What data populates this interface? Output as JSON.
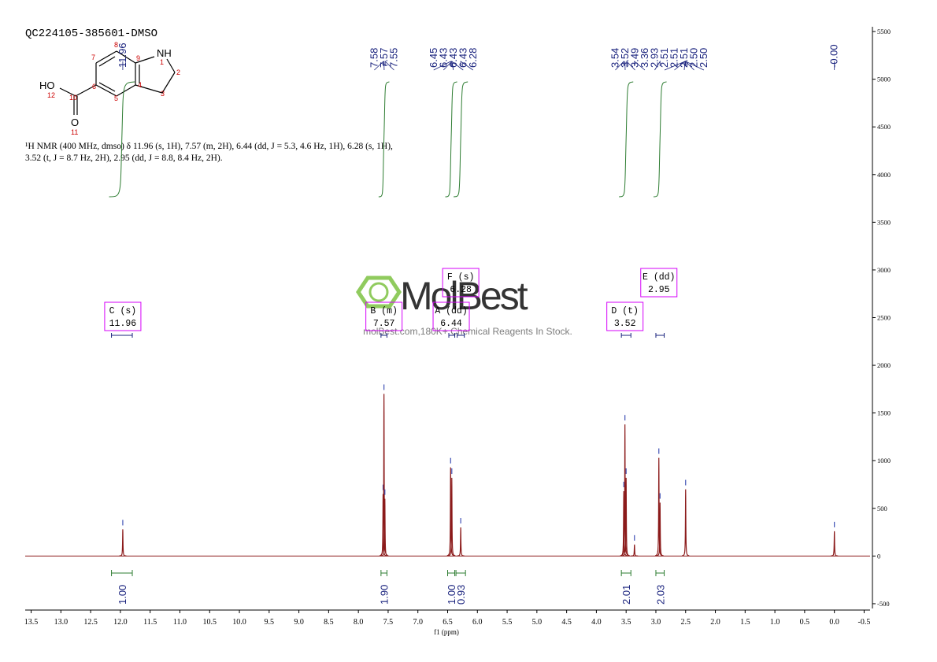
{
  "chart_data": {
    "type": "nmr",
    "title": "QC224105-385601-DMSO",
    "description": [
      "¹H NMR (400 MHz, dmso) δ 11.96 (s, 1H), 7.57 (m, 2H), 6.44 (dd, J = 5.3, 4.6 Hz, 1H), 6.28 (s, 1H),",
      "3.52 (t, J = 8.7 Hz, 2H), 2.95 (dd, J = 8.8, 8.4 Hz, 2H)."
    ],
    "x_label": "f1 (ppm)",
    "xlim": [
      13.6,
      -0.6
    ],
    "ylim": [
      -550,
      5550
    ],
    "xticks": [
      13.5,
      {
        "value": 13,
        "label": "13.0"
      },
      12.5,
      {
        "value": 12,
        "label": "12.0"
      },
      11.5,
      {
        "value": 11,
        "label": "11.0"
      },
      10.5,
      {
        "value": 10,
        "label": "10.0"
      },
      9.5,
      {
        "value": 9,
        "label": "9.0"
      },
      8.5,
      {
        "value": 8,
        "label": "8.0"
      },
      7.5,
      {
        "value": 7,
        "label": "7.0"
      },
      6.5,
      {
        "value": 6,
        "label": "6.0"
      },
      5.5,
      {
        "value": 5,
        "label": "5.0"
      },
      4.5,
      {
        "value": 4,
        "label": "4.0"
      },
      3.5,
      {
        "value": 3,
        "label": "3.0"
      },
      2.5,
      {
        "value": 2,
        "label": "2.0"
      },
      1.5,
      {
        "value": 1,
        "label": "1.0"
      },
      0.5,
      {
        "value": 0,
        "label": "0.0"
      },
      -0.5
    ],
    "yticks": [
      -500,
      0,
      500,
      1000,
      1500,
      2000,
      2500,
      3000,
      3500,
      4000,
      4500,
      5000,
      5500
    ],
    "color": "#8b1a1a",
    "peaks": {
      "x": [
        11.96,
        7.585,
        7.57,
        7.555,
        6.45,
        6.43,
        6.28,
        3.54,
        3.52,
        3.5,
        3.36,
        2.95,
        2.93,
        2.5,
        0
      ],
      "values": [
        280,
        650,
        1700,
        600,
        930,
        820,
        300,
        680,
        1380,
        820,
        120,
        1030,
        560,
        700,
        260
      ]
    },
    "peak_labels": [
      {
        "value": 11.96,
        "label": "11.96"
      },
      {
        "value": 7.58,
        "label": "7.58"
      },
      {
        "value": 7.57,
        "label": "7.57"
      },
      {
        "value": 7.55,
        "label": "7.55"
      },
      {
        "value": 6.45,
        "label": "6.45"
      },
      {
        "value": 6.43,
        "label": "6.43"
      },
      {
        "value": 6.43,
        "label": "6.43"
      },
      {
        "value": 6.43,
        "label": "6.43"
      },
      {
        "value": 6.28,
        "label": "6.28"
      },
      {
        "value": 3.54,
        "label": "3.54"
      },
      {
        "value": 3.52,
        "label": "3.52"
      },
      {
        "value": 3.49,
        "label": "3.49"
      },
      {
        "value": 3.36,
        "label": "3.36"
      },
      {
        "value": 2.93,
        "label": "2.93"
      },
      {
        "value": 2.51,
        "label": "2.51"
      },
      {
        "value": 2.51,
        "label": "2.51"
      },
      {
        "value": 2.51,
        "label": "2.51"
      },
      {
        "value": 2.5,
        "label": "2.50"
      },
      {
        "value": 2.5,
        "label": "2.50"
      },
      {
        "value": 0,
        "label": "-0.00"
      }
    ],
    "integrals": [
      {
        "range": [
          12.15,
          11.8
        ],
        "label": "1.00"
      },
      {
        "range": [
          7.62,
          7.52
        ],
        "label": "1.90"
      },
      {
        "range": [
          6.5,
          6.38
        ],
        "label": "1.00"
      },
      {
        "range": [
          6.36,
          6.2
        ],
        "label": "0.93"
      },
      {
        "range": [
          3.58,
          3.42
        ],
        "label": "2.01"
      },
      {
        "range": [
          3.0,
          2.86
        ],
        "label": "2.03"
      }
    ],
    "multiplets": [
      {
        "name": "C (s)",
        "value": 11.96,
        "range": [
          12.15,
          11.8
        ]
      },
      {
        "name": "B (m)",
        "value": 7.57,
        "range": [
          7.62,
          7.52
        ]
      },
      {
        "name": "A (dd)",
        "value": 6.44,
        "range": [
          6.48,
          6.38
        ]
      },
      {
        "name": "F (s)",
        "value": 6.28,
        "range": [
          6.34,
          6.22
        ]
      },
      {
        "name": "D (t)",
        "value": 3.52,
        "range": [
          3.58,
          3.42
        ]
      },
      {
        "name": "E (dd)",
        "value": 2.95,
        "range": [
          3.0,
          2.86
        ]
      }
    ]
  },
  "structure": {
    "atoms": [
      "HO",
      "12",
      "10",
      "O",
      "11",
      "6",
      "7",
      "8",
      "9",
      "NH",
      "1",
      "2",
      "3",
      "4",
      "5"
    ]
  },
  "watermark": {
    "brand": "MolBest",
    "tagline": "molBest.com,180K+ Chemical Reagents In Stock."
  }
}
